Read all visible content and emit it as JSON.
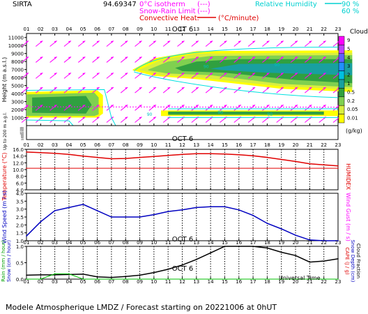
{
  "header": {
    "station": "SIRTA",
    "code": "94.69347",
    "legend_isotherm": "0°C isotherm",
    "legend_isotherm_dash": "(---)",
    "legend_snowrain": "Snow-Rain Limit",
    "legend_snowrain_dash": "(---)",
    "legend_convective": "Convective Heat.",
    "legend_convective_unit": "(°C/minute)",
    "legend_rh": "Relative Humidity",
    "rh_90": "90 %",
    "rh_60": "60 %"
  },
  "hours": [
    "01",
    "02",
    "03",
    "04",
    "05",
    "06",
    "07",
    "08",
    "09",
    "10",
    "11",
    "12",
    "13",
    "14",
    "15",
    "16",
    "17",
    "18",
    "19",
    "20",
    "21",
    "22",
    "23"
  ],
  "date_label": "OCT  6",
  "colors": {
    "red": "#e00000",
    "blue": "#0000c0",
    "magenta": "#ff00ff",
    "cyan": "#00e0e0",
    "black": "#000000"
  },
  "panel1": {
    "ylabel": "Height  (m a.s.l.)",
    "ylabel2": "Up to 200 m a.g.l.",
    "height_ticks": [
      "11000",
      "10000",
      "9000",
      "8000",
      "7000",
      "6000",
      "5000",
      "4000",
      "3000",
      "2000",
      "1000"
    ],
    "low_ticks": [
      "180",
      "160",
      "140",
      "120",
      "100",
      "80",
      "60",
      "40",
      "20"
    ],
    "clouds_title": "Clouds",
    "clouds_ticks": [
      "9",
      "5",
      "4",
      "3",
      "2",
      "1",
      "0.5",
      "0.2",
      "0.05",
      "0.01"
    ],
    "clouds_unit": "(g/kg)",
    "contour_label": "90"
  },
  "chart_data": [
    {
      "type": "line",
      "title": "",
      "ylabel": "Temperature (°C)",
      "y2label": "HUMIDEX",
      "ylim": [
        4,
        16
      ],
      "yticks": [
        "16.0",
        "14.0",
        "12.0",
        "10.0",
        "8.0",
        "6.0",
        "4.0"
      ],
      "x": [
        "01",
        "02",
        "03",
        "04",
        "05",
        "06",
        "07",
        "08",
        "09",
        "10",
        "11",
        "12",
        "13",
        "14",
        "15",
        "16",
        "17",
        "18",
        "19",
        "20",
        "21",
        "22",
        "23"
      ],
      "series": [
        {
          "name": "",
          "color": "#e00000",
          "values": [
            15.2,
            15.0,
            14.8,
            14.5,
            14.0,
            13.6,
            13.2,
            13.3,
            13.6,
            13.9,
            14.2,
            14.5,
            14.7,
            14.7,
            14.6,
            14.4,
            14.1,
            13.6,
            13.0,
            12.4,
            11.7,
            11.4,
            11.1
          ]
        },
        {
          "name": "",
          "color": "#e00000",
          "values": [
            10.4,
            10.4,
            10.4,
            10.4,
            10.4,
            10.4,
            10.4,
            10.4,
            10.4,
            10.4,
            10.4,
            10.4,
            10.4,
            10.4,
            10.4,
            10.4,
            10.4,
            10.4,
            10.4,
            10.4,
            10.4,
            10.4,
            10.4
          ]
        }
      ]
    },
    {
      "type": "line",
      "title": "",
      "ylabel": "Wind Speed (m / s)",
      "y2label": "Wind Gust (m / s)",
      "ylim": [
        1,
        4
      ],
      "yticks": [
        "4.0",
        "3.5",
        "3.0",
        "2.5",
        "2.0",
        "1.5",
        "1.0"
      ],
      "x": [
        "01",
        "02",
        "03",
        "04",
        "05",
        "06",
        "07",
        "08",
        "09",
        "10",
        "11",
        "12",
        "13",
        "14",
        "15",
        "16",
        "17",
        "18",
        "19",
        "20",
        "21",
        "22",
        "23"
      ],
      "series": [
        {
          "name": "",
          "color": "#0000c0",
          "values": [
            1.3,
            2.2,
            2.9,
            3.1,
            3.3,
            2.9,
            2.5,
            2.5,
            2.5,
            2.65,
            2.85,
            2.95,
            3.1,
            3.15,
            3.15,
            2.95,
            2.6,
            2.1,
            1.75,
            1.35,
            1.05,
            1.0,
            1.0
          ]
        }
      ]
    },
    {
      "type": "line",
      "title": "",
      "ylabel": "Rain (mm / hour)",
      "ylabel_b": "Snow (cm / hour)",
      "y2label": "CAPE (J / g)",
      "y2label_b": "Snow Depth (cm)",
      "y2label_c": "Cloud Fraction",
      "xlabel": "Universal Time",
      "ylim": [
        0,
        1
      ],
      "yticks": [
        "1.0",
        "0.5",
        "0.0"
      ],
      "x": [
        "01",
        "02",
        "03",
        "04",
        "05",
        "06",
        "07",
        "08",
        "09",
        "10",
        "11",
        "12",
        "13",
        "14",
        "15",
        "16",
        "17",
        "18",
        "19",
        "20",
        "21",
        "22",
        "23"
      ],
      "series": [
        {
          "name": "",
          "color": "#000000",
          "values": [
            0.12,
            0.13,
            0.13,
            0.14,
            0.15,
            0.07,
            0.05,
            0.08,
            0.12,
            0.2,
            0.3,
            0.43,
            0.6,
            0.8,
            1.0,
            1.0,
            1.0,
            0.95,
            0.82,
            0.72,
            0.52,
            0.55,
            0.62
          ]
        },
        {
          "name": "",
          "color": "#00c000",
          "values": [
            0,
            0,
            0.16,
            0.16,
            0,
            0,
            0,
            0,
            0,
            0,
            0,
            0,
            0,
            0,
            0,
            0,
            0,
            0,
            0,
            0,
            0,
            0,
            0
          ]
        }
      ]
    }
  ],
  "footer": "Modele Atmospherique LMDZ / Forecast starting on 20221006 at 0hUT"
}
